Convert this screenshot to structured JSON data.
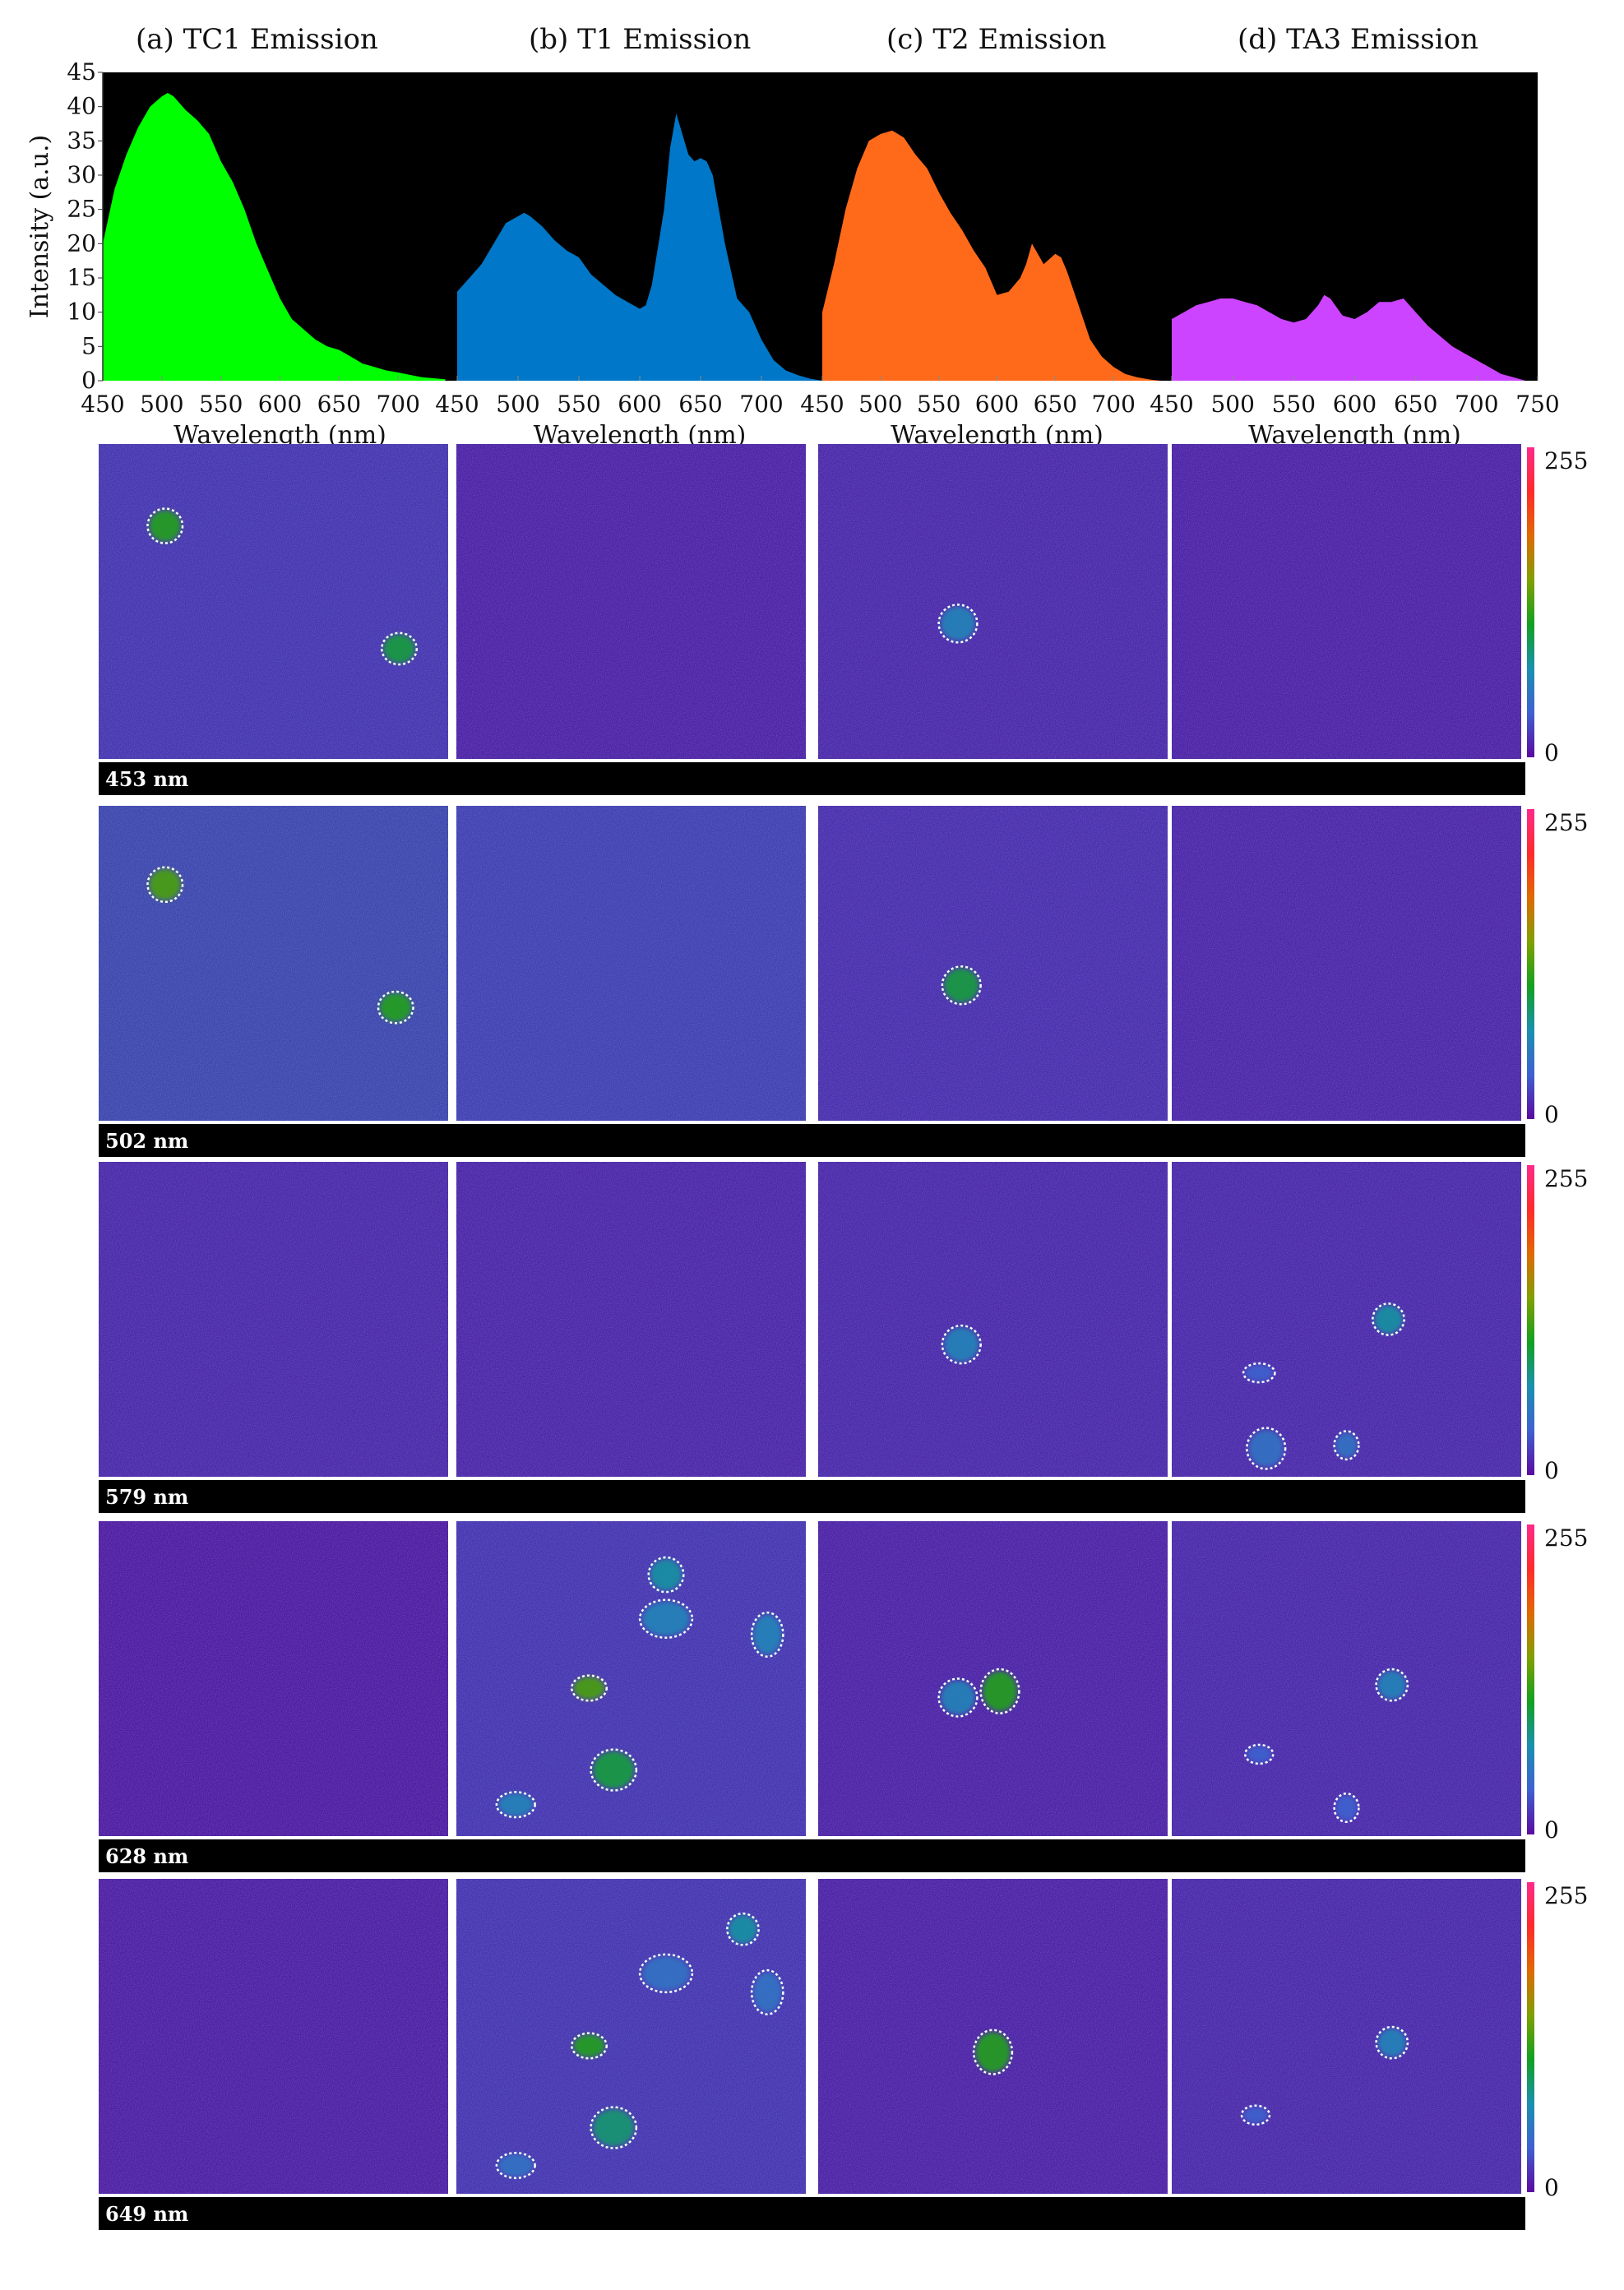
{
  "chart_data": [
    {
      "type": "area",
      "title": "(a) TC1 Emission",
      "xlabel": "Wavelength (nm)",
      "ylabel": "Intensity (a.u.)",
      "xlim": [
        450,
        750
      ],
      "ylim": [
        0,
        45
      ],
      "x_ticks": [
        450,
        500,
        550,
        600,
        650,
        700
      ],
      "y_ticks": [
        0,
        5,
        10,
        15,
        20,
        25,
        30,
        35,
        40,
        45
      ],
      "colors": {
        "fill": "#00ff00",
        "background": "#000000"
      },
      "x": [
        450,
        460,
        470,
        480,
        490,
        500,
        505,
        510,
        520,
        530,
        540,
        550,
        560,
        570,
        580,
        590,
        600,
        610,
        620,
        630,
        640,
        650,
        660,
        670,
        680,
        690,
        700,
        720,
        740
      ],
      "values": [
        20,
        28,
        33,
        37,
        40,
        41.5,
        42,
        41.5,
        39.5,
        38,
        36,
        32,
        29,
        25,
        20,
        16,
        12,
        9,
        7.5,
        6,
        5,
        4.5,
        3.5,
        2.5,
        2,
        1.5,
        1.2,
        0.5,
        0.2
      ]
    },
    {
      "type": "area",
      "title": "(b) T1 Emission",
      "xlabel": "Wavelength (nm)",
      "xlim": [
        450,
        750
      ],
      "ylim": [
        0,
        45
      ],
      "x_ticks": [
        450,
        500,
        550,
        600,
        650,
        700
      ],
      "colors": {
        "fill": "#0077c8",
        "background": "#000000"
      },
      "x": [
        450,
        460,
        470,
        480,
        490,
        500,
        505,
        510,
        520,
        530,
        540,
        550,
        560,
        570,
        580,
        590,
        600,
        605,
        610,
        620,
        625,
        630,
        640,
        645,
        650,
        655,
        660,
        670,
        680,
        690,
        700,
        710,
        720,
        730,
        740,
        750
      ],
      "values": [
        13,
        15,
        17,
        20,
        23,
        24,
        24.5,
        24,
        22.5,
        20.5,
        19,
        18,
        15.5,
        14,
        12.5,
        11.5,
        10.5,
        11,
        14,
        25,
        34,
        39,
        33,
        32,
        32.5,
        32,
        30,
        20,
        12,
        10,
        6,
        3,
        1.5,
        0.8,
        0.3,
        0
      ]
    },
    {
      "type": "area",
      "title": "(c) T2 Emission",
      "xlabel": "Wavelength (nm)",
      "xlim": [
        450,
        750
      ],
      "ylim": [
        0,
        45
      ],
      "x_ticks": [
        450,
        500,
        550,
        600,
        650,
        700
      ],
      "colors": {
        "fill": "#ff6a1a",
        "background": "#000000"
      },
      "x": [
        450,
        460,
        470,
        480,
        490,
        500,
        510,
        520,
        530,
        540,
        550,
        560,
        570,
        580,
        590,
        600,
        610,
        620,
        625,
        630,
        640,
        650,
        655,
        660,
        670,
        680,
        690,
        700,
        710,
        720,
        730,
        740,
        750
      ],
      "values": [
        10,
        17,
        25,
        31,
        35,
        36,
        36.5,
        35.5,
        33,
        31,
        27.5,
        24.5,
        22,
        19,
        16.5,
        12.5,
        13,
        15,
        17,
        20,
        17,
        18.5,
        18,
        16,
        11,
        6,
        3.5,
        2,
        1,
        0.5,
        0.2,
        0,
        0
      ]
    },
    {
      "type": "area",
      "title": "(d) TA3 Emission",
      "xlabel": "Wavelength (nm)",
      "xlim": [
        450,
        750
      ],
      "ylim": [
        0,
        45
      ],
      "x_ticks": [
        450,
        500,
        550,
        600,
        650,
        700,
        750
      ],
      "colors": {
        "fill": "#cc44ff",
        "background": "#000000"
      },
      "x": [
        450,
        460,
        470,
        480,
        490,
        500,
        510,
        520,
        530,
        540,
        550,
        560,
        570,
        575,
        580,
        590,
        600,
        610,
        620,
        630,
        640,
        650,
        660,
        670,
        680,
        690,
        700,
        710,
        720,
        730,
        740
      ],
      "values": [
        9,
        10,
        11,
        11.5,
        12,
        12,
        11.5,
        11,
        10,
        9,
        8.5,
        9,
        11,
        12.5,
        12,
        9.5,
        9,
        10,
        11.5,
        11.5,
        12,
        10,
        8,
        6.5,
        5,
        4,
        3,
        2,
        1,
        0.5,
        0
      ]
    },
    {
      "type": "heatmap",
      "colorbar": {
        "min_label": "0",
        "max_label": "255",
        "stops": [
          "#5b0aa0",
          "#4060d0",
          "#1a90b0",
          "#12a020",
          "#80a000",
          "#e06a00",
          "#ff2a2a",
          "#ff2a8a"
        ]
      },
      "background": "#4a1090",
      "rows": [
        {
          "label": "453 nm",
          "tiles": [
            {
              "level": 0.12,
              "rois": [
                {
                  "x": 0.19,
                  "y": 0.26,
                  "rx": 0.05,
                  "ry": 0.055,
                  "fill": 0.45
                },
                {
                  "x": 0.86,
                  "y": 0.65,
                  "rx": 0.05,
                  "ry": 0.05,
                  "fill": 0.4
                }
              ]
            },
            {
              "level": 0.06,
              "rois": []
            },
            {
              "level": 0.08,
              "rois": [
                {
                  "x": 0.4,
                  "y": 0.57,
                  "rx": 0.055,
                  "ry": 0.06,
                  "fill": 0.25
                }
              ]
            },
            {
              "level": 0.06,
              "rois": []
            }
          ]
        },
        {
          "label": "502 nm",
          "tiles": [
            {
              "level": 0.2,
              "rois": [
                {
                  "x": 0.19,
                  "y": 0.25,
                  "rx": 0.05,
                  "ry": 0.055,
                  "fill": 0.5
                },
                {
                  "x": 0.85,
                  "y": 0.64,
                  "rx": 0.05,
                  "ry": 0.05,
                  "fill": 0.45
                }
              ]
            },
            {
              "level": 0.16,
              "rois": []
            },
            {
              "level": 0.1,
              "rois": [
                {
                  "x": 0.41,
                  "y": 0.57,
                  "rx": 0.055,
                  "ry": 0.06,
                  "fill": 0.4
                }
              ]
            },
            {
              "level": 0.07,
              "rois": []
            }
          ]
        },
        {
          "label": "579 nm",
          "tiles": [
            {
              "level": 0.08,
              "rois": []
            },
            {
              "level": 0.07,
              "rois": []
            },
            {
              "level": 0.08,
              "rois": [
                {
                  "x": 0.41,
                  "y": 0.58,
                  "rx": 0.055,
                  "ry": 0.06,
                  "fill": 0.25
                }
              ]
            },
            {
              "level": 0.08,
              "rois": [
                {
                  "x": 0.62,
                  "y": 0.5,
                  "rx": 0.045,
                  "ry": 0.05,
                  "fill": 0.3
                },
                {
                  "x": 0.25,
                  "y": 0.67,
                  "rx": 0.045,
                  "ry": 0.03,
                  "fill": 0.15
                },
                {
                  "x": 0.27,
                  "y": 0.91,
                  "rx": 0.055,
                  "ry": 0.065,
                  "fill": 0.2
                },
                {
                  "x": 0.5,
                  "y": 0.9,
                  "rx": 0.035,
                  "ry": 0.045,
                  "fill": 0.2
                }
              ]
            }
          ]
        },
        {
          "label": "628 nm",
          "tiles": [
            {
              "level": 0.04,
              "rois": []
            },
            {
              "level": 0.12,
              "rois": [
                {
                  "x": 0.6,
                  "y": 0.17,
                  "rx": 0.05,
                  "ry": 0.055,
                  "fill": 0.3
                },
                {
                  "x": 0.6,
                  "y": 0.31,
                  "rx": 0.075,
                  "ry": 0.06,
                  "fill": 0.25
                },
                {
                  "x": 0.89,
                  "y": 0.36,
                  "rx": 0.045,
                  "ry": 0.07,
                  "fill": 0.25
                },
                {
                  "x": 0.38,
                  "y": 0.53,
                  "rx": 0.05,
                  "ry": 0.04,
                  "fill": 0.5
                },
                {
                  "x": 0.45,
                  "y": 0.79,
                  "rx": 0.065,
                  "ry": 0.065,
                  "fill": 0.4
                },
                {
                  "x": 0.17,
                  "y": 0.9,
                  "rx": 0.055,
                  "ry": 0.04,
                  "fill": 0.25
                }
              ]
            },
            {
              "level": 0.06,
              "rois": [
                {
                  "x": 0.4,
                  "y": 0.56,
                  "rx": 0.055,
                  "ry": 0.06,
                  "fill": 0.25
                },
                {
                  "x": 0.52,
                  "y": 0.54,
                  "rx": 0.055,
                  "ry": 0.07,
                  "fill": 0.45
                }
              ]
            },
            {
              "level": 0.08,
              "rois": [
                {
                  "x": 0.63,
                  "y": 0.52,
                  "rx": 0.045,
                  "ry": 0.05,
                  "fill": 0.25
                },
                {
                  "x": 0.25,
                  "y": 0.74,
                  "rx": 0.04,
                  "ry": 0.03,
                  "fill": 0.15
                },
                {
                  "x": 0.5,
                  "y": 0.91,
                  "rx": 0.035,
                  "ry": 0.045,
                  "fill": 0.15
                }
              ]
            }
          ]
        },
        {
          "label": "649 nm",
          "tiles": [
            {
              "level": 0.05,
              "rois": []
            },
            {
              "level": 0.12,
              "rois": [
                {
                  "x": 0.82,
                  "y": 0.16,
                  "rx": 0.045,
                  "ry": 0.05,
                  "fill": 0.3
                },
                {
                  "x": 0.6,
                  "y": 0.3,
                  "rx": 0.075,
                  "ry": 0.06,
                  "fill": 0.2
                },
                {
                  "x": 0.89,
                  "y": 0.36,
                  "rx": 0.045,
                  "ry": 0.07,
                  "fill": 0.2
                },
                {
                  "x": 0.38,
                  "y": 0.53,
                  "rx": 0.05,
                  "ry": 0.04,
                  "fill": 0.45
                },
                {
                  "x": 0.45,
                  "y": 0.79,
                  "rx": 0.065,
                  "ry": 0.065,
                  "fill": 0.35
                },
                {
                  "x": 0.17,
                  "y": 0.91,
                  "rx": 0.055,
                  "ry": 0.04,
                  "fill": 0.2
                }
              ]
            },
            {
              "level": 0.06,
              "rois": [
                {
                  "x": 0.5,
                  "y": 0.55,
                  "rx": 0.055,
                  "ry": 0.07,
                  "fill": 0.45
                }
              ]
            },
            {
              "level": 0.08,
              "rois": [
                {
                  "x": 0.63,
                  "y": 0.52,
                  "rx": 0.045,
                  "ry": 0.05,
                  "fill": 0.25
                },
                {
                  "x": 0.24,
                  "y": 0.75,
                  "rx": 0.04,
                  "ry": 0.03,
                  "fill": 0.15
                }
              ]
            }
          ]
        }
      ]
    }
  ]
}
